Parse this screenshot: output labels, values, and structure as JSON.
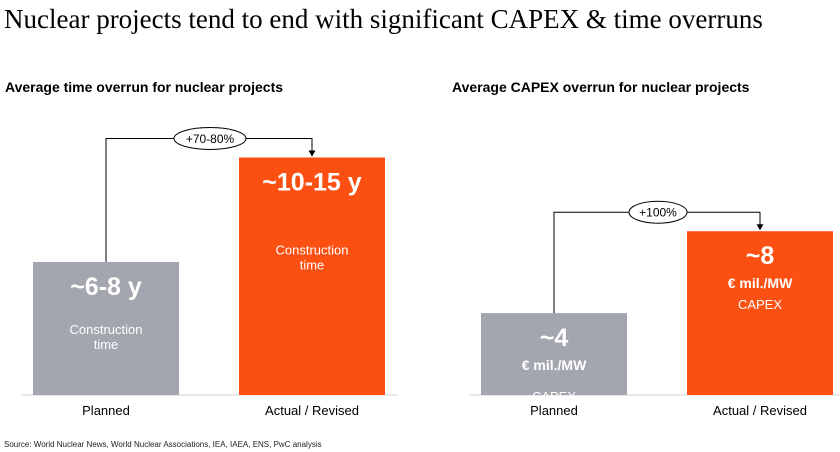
{
  "title": "Nuclear projects tend to end with significant CAPEX & time overruns",
  "source": "Source: World Nuclear News, World Nuclear Associations, IEA, IAEA, ENS,  PwC analysis",
  "colors": {
    "planned": "#a3a6ae",
    "actual": "#fb5012",
    "text_on_bar": "#ffffff",
    "connector": "#000000"
  },
  "chart_data": [
    {
      "type": "bar",
      "title": "Average time overrun for nuclear projects",
      "categories": [
        "Planned",
        "Actual / Revised"
      ],
      "values": [
        7,
        12.5
      ],
      "value_labels": [
        "~6-8 y",
        "~10-15 y"
      ],
      "unit_labels": [
        "",
        ""
      ],
      "bar_descriptions": [
        [
          "Construction",
          "time"
        ],
        [
          "Construction",
          "time"
        ]
      ],
      "annotation": "+70-80%",
      "ylim": [
        0,
        15
      ]
    },
    {
      "type": "bar",
      "title": "Average CAPEX overrun for nuclear projects",
      "categories": [
        "Planned",
        "Actual / Revised"
      ],
      "values": [
        4,
        8
      ],
      "value_labels": [
        "~4",
        "~8"
      ],
      "unit_labels": [
        "€ mil./MW",
        "€ mil./MW"
      ],
      "bar_descriptions": [
        [
          "CAPEX"
        ],
        [
          "CAPEX"
        ]
      ],
      "annotation": "+100%",
      "ylim": [
        0,
        12.7
      ]
    }
  ]
}
